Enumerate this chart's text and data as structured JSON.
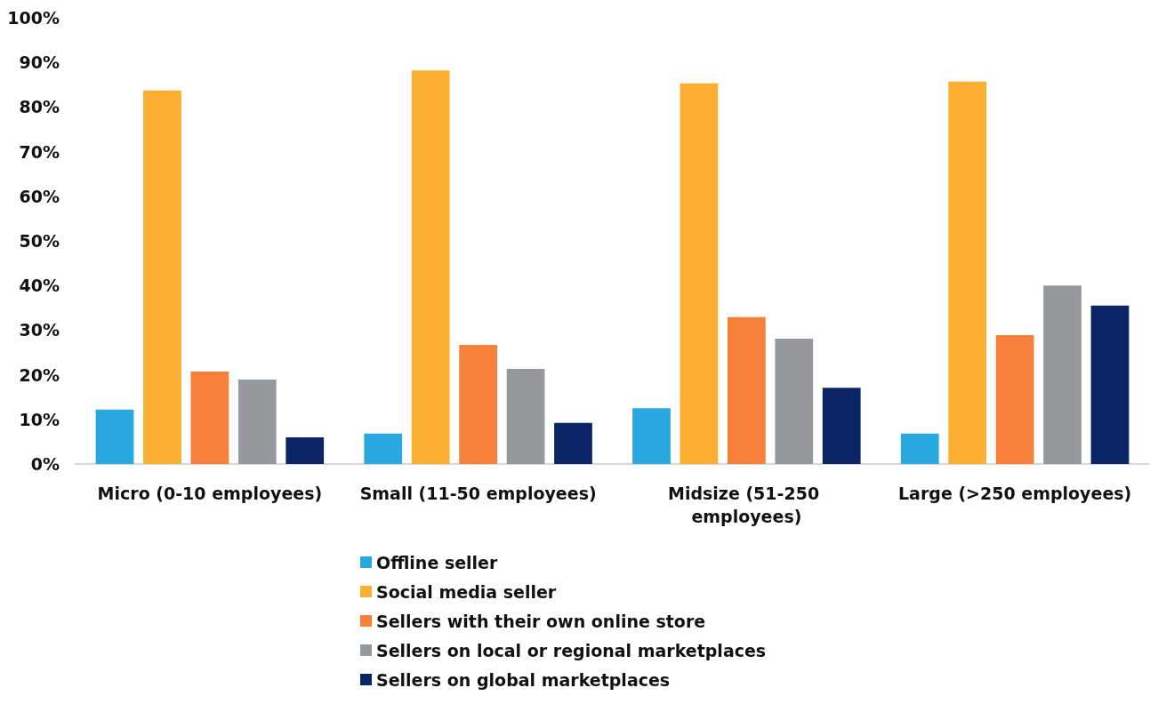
{
  "chart_data": {
    "type": "bar",
    "categories": [
      "Micro (0-10 employees)",
      "Small (11-50 employees)",
      "Midsize (51-250 employees)",
      "Large (>250 employees)"
    ],
    "series": [
      {
        "name": "Offline seller",
        "color": "#29a8e0",
        "values": [
          12.2,
          6.8,
          12.5,
          6.8
        ]
      },
      {
        "name": "Social media seller",
        "color": "#fbb034",
        "values": [
          83.7,
          88.2,
          85.3,
          85.7
        ]
      },
      {
        "name": "Sellers with their own online store",
        "color": "#f7813b",
        "values": [
          20.7,
          26.7,
          32.9,
          28.9
        ]
      },
      {
        "name": "Sellers on local or regional marketplaces",
        "color": "#96999c",
        "values": [
          18.9,
          21.3,
          28.1,
          40.0
        ]
      },
      {
        "name": "Sellers on global marketplaces",
        "color": "#0b2466",
        "values": [
          6.0,
          9.2,
          17.1,
          35.5
        ]
      }
    ],
    "ylim": [
      0,
      100
    ],
    "yticks": [
      {
        "value": 0,
        "label": "0%"
      },
      {
        "value": 10,
        "label": "10%"
      },
      {
        "value": 20,
        "label": "20%"
      },
      {
        "value": 30,
        "label": "30%"
      },
      {
        "value": 40,
        "label": "40%"
      },
      {
        "value": 50,
        "label": "50%"
      },
      {
        "value": 60,
        "label": "60%"
      },
      {
        "value": 70,
        "label": "70%"
      },
      {
        "value": 80,
        "label": "80%"
      },
      {
        "value": 90,
        "label": "90%"
      },
      {
        "value": 100,
        "label": "100%"
      }
    ],
    "grid": false,
    "legend": "bottom"
  }
}
